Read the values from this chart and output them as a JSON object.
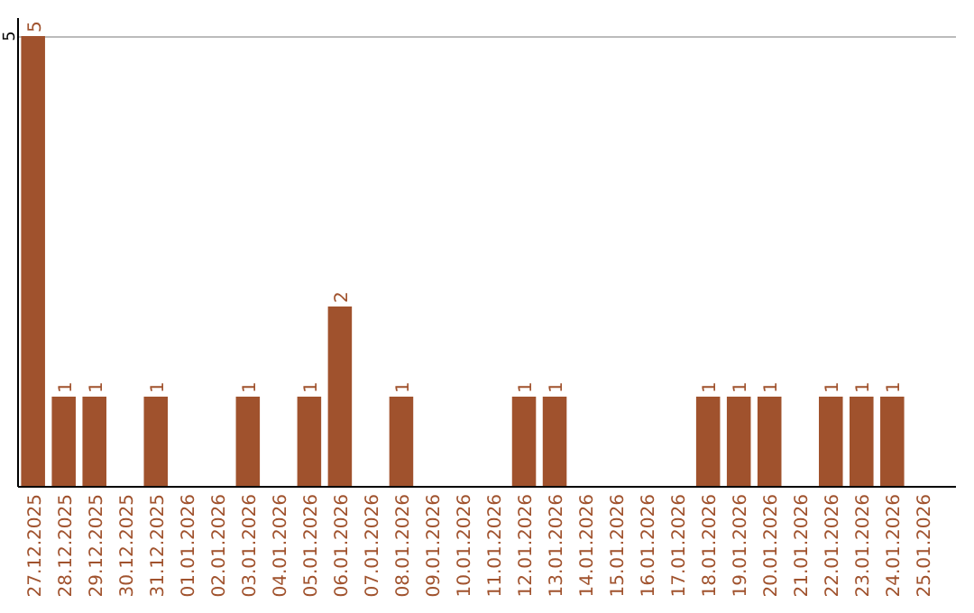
{
  "chart_data": {
    "type": "bar",
    "categories": [
      "27.12.2025",
      "28.12.2025",
      "29.12.2025",
      "30.12.2025",
      "31.12.2025",
      "01.01.2026",
      "02.01.2026",
      "03.01.2026",
      "04.01.2026",
      "05.01.2026",
      "06.01.2026",
      "07.01.2026",
      "08.01.2026",
      "09.01.2026",
      "10.01.2026",
      "11.01.2026",
      "12.01.2026",
      "13.01.2026",
      "14.01.2026",
      "15.01.2026",
      "16.01.2026",
      "17.01.2026",
      "18.01.2026",
      "19.01.2026",
      "20.01.2026",
      "21.01.2026",
      "22.01.2026",
      "23.01.2026",
      "24.01.2026",
      "25.01.2026"
    ],
    "values": [
      5,
      1,
      1,
      0,
      1,
      0,
      0,
      1,
      0,
      1,
      2,
      0,
      1,
      0,
      0,
      0,
      1,
      1,
      0,
      0,
      0,
      0,
      1,
      1,
      1,
      0,
      1,
      1,
      1,
      0
    ],
    "value_labels": [
      "5",
      "1",
      "1",
      null,
      "1",
      null,
      null,
      "1",
      null,
      "1",
      "2",
      null,
      "1",
      null,
      null,
      null,
      "1",
      "1",
      null,
      null,
      null,
      null,
      "1",
      "1",
      "1",
      null,
      "1",
      "1",
      "1",
      null
    ],
    "color": "#a0522d",
    "ylim": [
      0,
      5.2
    ],
    "yticks": [
      5
    ],
    "grid": "y"
  }
}
